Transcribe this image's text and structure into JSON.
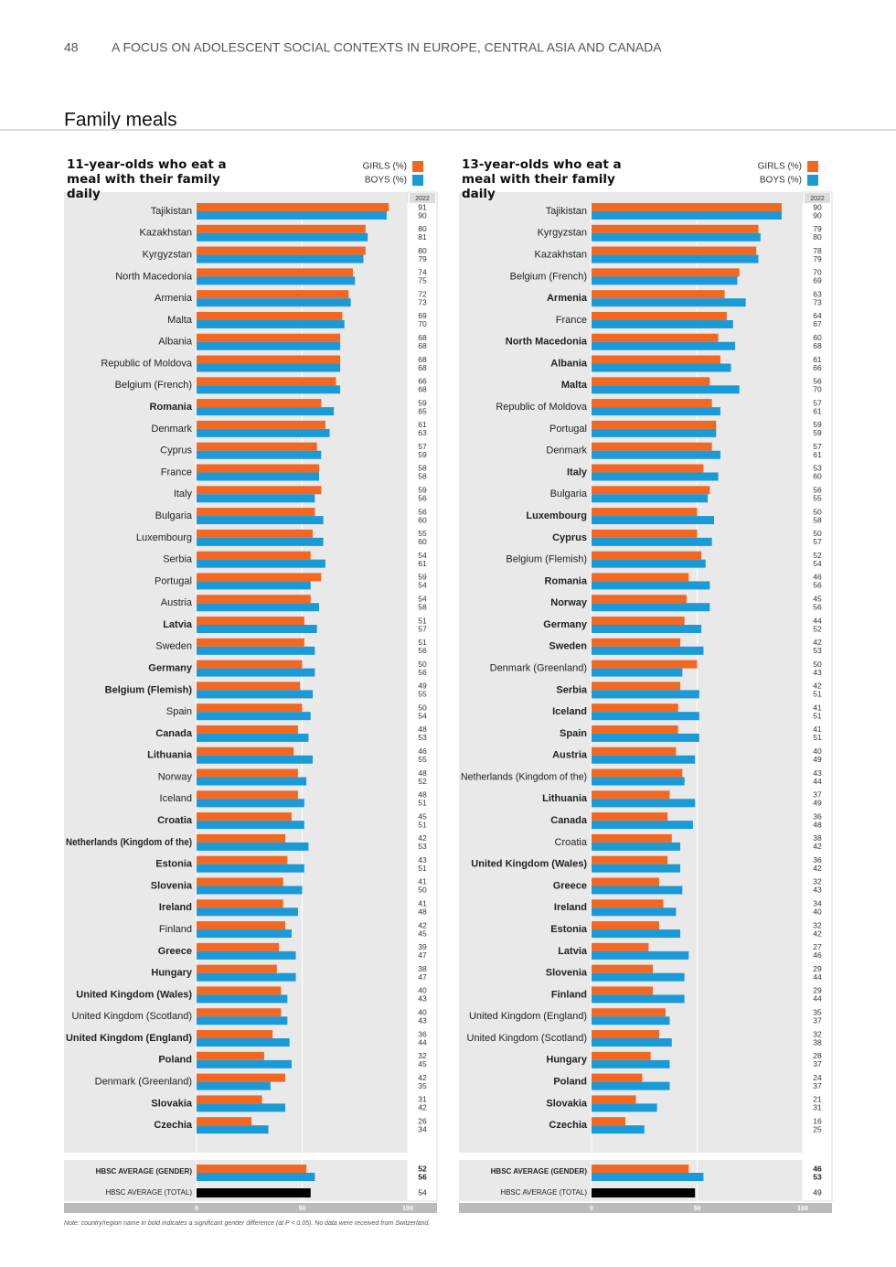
{
  "page_number": "48",
  "running_header": "A FOCUS ON ADOLESCENT SOCIAL CONTEXTS IN EUROPE, CENTRAL ASIA AND CANADA",
  "section_title": "Family meals",
  "note": "Note: country/region name in bold indicates a significant gender difference (at P < 0.05). No data were received from Switzerland.",
  "chart_data": [
    {
      "type": "bar",
      "orientation": "horizontal",
      "title": "11-year-olds who eat a meal with their family daily",
      "year_label": "2022",
      "categories": [
        "Tajikistan",
        "Kazakhstan",
        "Kyrgyzstan",
        "North Macedonia",
        "Armenia",
        "Malta",
        "Albania",
        "Republic of Moldova",
        "Belgium (French)",
        "Romania",
        "Denmark",
        "Cyprus",
        "France",
        "Italy",
        "Bulgaria",
        "Luxembourg",
        "Serbia",
        "Portugal",
        "Austria",
        "Latvia",
        "Sweden",
        "Germany",
        "Belgium (Flemish)",
        "Spain",
        "Canada",
        "Lithuania",
        "Norway",
        "Iceland",
        "Croatia",
        "Netherlands (Kingdom of the)",
        "Estonia",
        "Slovenia",
        "Ireland",
        "Finland",
        "Greece",
        "Hungary",
        "United Kingdom (Wales)",
        "United Kingdom (Scotland)",
        "United Kingdom (England)",
        "Poland",
        "Denmark (Greenland)",
        "Slovakia",
        "Czechia"
      ],
      "significant": [
        false,
        false,
        false,
        false,
        false,
        false,
        false,
        false,
        false,
        true,
        false,
        false,
        false,
        false,
        false,
        false,
        false,
        false,
        false,
        true,
        false,
        true,
        true,
        false,
        true,
        true,
        false,
        false,
        true,
        true,
        true,
        true,
        true,
        false,
        true,
        true,
        true,
        false,
        true,
        true,
        false,
        true,
        true
      ],
      "series": [
        {
          "name": "GIRLS (%)",
          "color": "#f26722",
          "values": [
            91,
            80,
            80,
            74,
            72,
            69,
            68,
            68,
            66,
            59,
            61,
            57,
            58,
            59,
            56,
            55,
            54,
            59,
            54,
            51,
            51,
            50,
            49,
            50,
            48,
            46,
            48,
            48,
            45,
            42,
            43,
            41,
            41,
            42,
            39,
            38,
            40,
            40,
            36,
            32,
            42,
            31,
            26
          ]
        },
        {
          "name": "BOYS (%)",
          "color": "#1a9ad6",
          "values": [
            90,
            81,
            79,
            75,
            73,
            70,
            68,
            68,
            68,
            65,
            63,
            59,
            58,
            56,
            60,
            60,
            61,
            54,
            58,
            57,
            56,
            56,
            55,
            54,
            53,
            55,
            52,
            51,
            51,
            53,
            51,
            50,
            48,
            45,
            47,
            47,
            43,
            43,
            44,
            45,
            35,
            42,
            34
          ]
        }
      ],
      "average_gender": {
        "label": "HBSC AVERAGE (GENDER)",
        "values": [
          52,
          56
        ]
      },
      "average_total": {
        "label": "HBSC AVERAGE (TOTAL)",
        "value": 54,
        "color": "#000000"
      },
      "xlim": [
        0,
        100
      ],
      "xticks": [
        0,
        50,
        100
      ],
      "grid": true
    },
    {
      "type": "bar",
      "orientation": "horizontal",
      "title": "13-year-olds who eat a meal with their family daily",
      "year_label": "2022",
      "categories": [
        "Tajikistan",
        "Kyrgyzstan",
        "Kazakhstan",
        "Belgium (French)",
        "Armenia",
        "France",
        "North Macedonia",
        "Albania",
        "Malta",
        "Republic of Moldova",
        "Portugal",
        "Denmark",
        "Italy",
        "Bulgaria",
        "Luxembourg",
        "Cyprus",
        "Belgium (Flemish)",
        "Romania",
        "Norway",
        "Germany",
        "Sweden",
        "Denmark (Greenland)",
        "Serbia",
        "Iceland",
        "Spain",
        "Austria",
        "Netherlands (Kingdom of the)",
        "Lithuania",
        "Canada",
        "Croatia",
        "United Kingdom (Wales)",
        "Greece",
        "Ireland",
        "Estonia",
        "Latvia",
        "Slovenia",
        "Finland",
        "United Kingdom (England)",
        "United Kingdom (Scotland)",
        "Hungary",
        "Poland",
        "Slovakia",
        "Czechia"
      ],
      "significant": [
        false,
        false,
        false,
        false,
        true,
        false,
        true,
        true,
        true,
        false,
        false,
        false,
        true,
        false,
        true,
        true,
        false,
        true,
        true,
        true,
        true,
        false,
        true,
        true,
        true,
        true,
        false,
        true,
        true,
        false,
        true,
        true,
        true,
        true,
        true,
        true,
        true,
        false,
        false,
        true,
        true,
        true,
        true
      ],
      "series": [
        {
          "name": "GIRLS (%)",
          "color": "#f26722",
          "values": [
            90,
            79,
            78,
            70,
            63,
            64,
            60,
            61,
            56,
            57,
            59,
            57,
            53,
            56,
            50,
            50,
            52,
            46,
            45,
            44,
            42,
            50,
            42,
            41,
            41,
            40,
            43,
            37,
            36,
            38,
            36,
            32,
            34,
            32,
            27,
            29,
            29,
            35,
            32,
            28,
            24,
            21,
            16
          ]
        },
        {
          "name": "BOYS (%)",
          "color": "#1a9ad6",
          "values": [
            90,
            80,
            79,
            69,
            73,
            67,
            68,
            66,
            70,
            61,
            59,
            61,
            60,
            55,
            58,
            57,
            54,
            56,
            56,
            52,
            53,
            43,
            51,
            51,
            51,
            49,
            44,
            49,
            48,
            42,
            42,
            43,
            40,
            42,
            46,
            44,
            44,
            37,
            38,
            37,
            37,
            31,
            25
          ]
        }
      ],
      "average_gender": {
        "label": "HBSC AVERAGE (GENDER)",
        "values": [
          46,
          53
        ]
      },
      "average_total": {
        "label": "HBSC AVERAGE (TOTAL)",
        "value": 49,
        "color": "#000000"
      },
      "xlim": [
        0,
        100
      ],
      "xticks": [
        0,
        50,
        100
      ],
      "grid": true
    }
  ]
}
